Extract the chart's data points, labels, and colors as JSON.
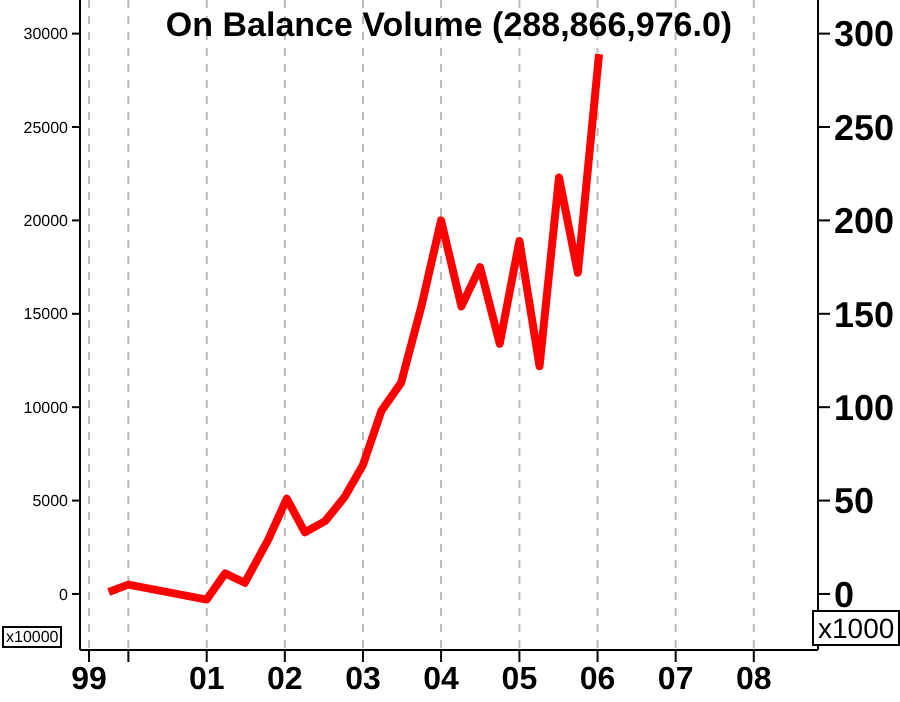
{
  "chart_data": {
    "type": "line",
    "title": "On Balance Volume (288,866,976.0)",
    "ylabel": "x10000",
    "y2label": "x1000",
    "x": [
      "1999-10-01",
      "2000-01-01",
      "2001-01-01",
      "2001-03-28",
      "2001-06-28",
      "2001-10-15",
      "2002-01-10",
      "2002-04-05",
      "2002-07-08",
      "2002-10-08",
      "2003-01-01",
      "2003-03-28",
      "2003-06-28",
      "2003-10-01",
      "2004-01-01",
      "2004-04-05",
      "2004-07-01",
      "2004-10-01",
      "2005-01-01",
      "2005-04-05",
      "2005-07-05",
      "2005-10-01",
      "2006-01-08"
    ],
    "series": [
      {
        "color": "#ff0000",
        "values": [
          100,
          500,
          -300,
          1100,
          600,
          2900,
          5100,
          3300,
          3900,
          5200,
          6900,
          9800,
          11300,
          15400,
          20000,
          15400,
          17500,
          13400,
          18900,
          12200,
          22300,
          17200,
          28900
        ]
      }
    ],
    "xlim": [
      "1999-05-20",
      "2008-10-27"
    ],
    "xticks": [
      {
        "value": "1999-07-01",
        "label": "99"
      },
      {
        "value": "2000-01-01",
        "label": null
      },
      {
        "value": "2001-01-01",
        "label": "01"
      },
      {
        "value": "2002-01-01",
        "label": "02"
      },
      {
        "value": "2003-01-01",
        "label": "03"
      },
      {
        "value": "2004-01-01",
        "label": "04"
      },
      {
        "value": "2005-01-01",
        "label": "05"
      },
      {
        "value": "2006-01-01",
        "label": "06"
      },
      {
        "value": "2007-01-01",
        "label": "07"
      },
      {
        "value": "2008-01-01",
        "label": "08"
      }
    ],
    "ylim": [
      -3000,
      31800
    ],
    "yticks": [
      0,
      5000,
      10000,
      15000,
      20000,
      25000,
      30000
    ],
    "y2lim": [
      -30,
      318
    ],
    "y2ticks": [
      0,
      50,
      100,
      150,
      200,
      250,
      300
    ],
    "grid": "x",
    "legend": false,
    "marker": "none",
    "line_style": "solid"
  }
}
